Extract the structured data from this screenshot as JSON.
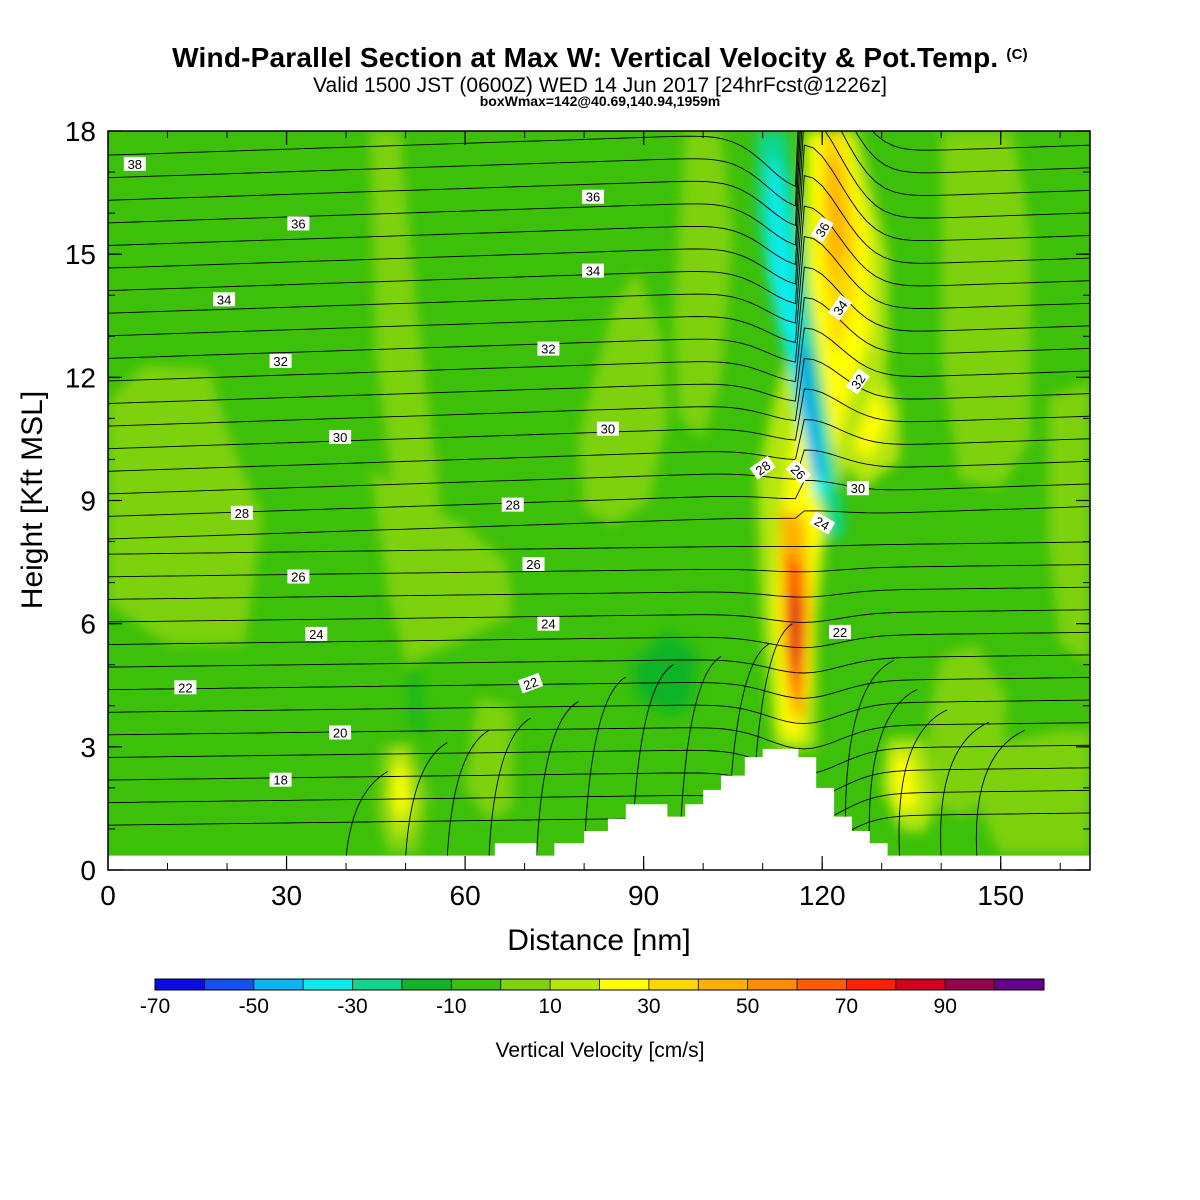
{
  "header": {
    "title": "Wind-Parallel Section at Max W: Vertical Velocity & Pot.Temp.",
    "title_mark": "(C)",
    "subtitle": "Valid 1500 JST (0600Z) WED 14 Jun 2017 [24hrFcst@1226z]",
    "info": "boxWmax=142@40.69,140.94,1959m"
  },
  "chart_data": {
    "type": "heatmap",
    "xlabel": "Distance [nm]",
    "ylabel": "Height [Kft MSL]",
    "xlim": [
      0,
      165
    ],
    "ylim": [
      0,
      18
    ],
    "x_ticks": [
      0,
      30,
      60,
      90,
      120,
      150
    ],
    "y_ticks": [
      0,
      3,
      6,
      9,
      12,
      15,
      18
    ],
    "colorbar": {
      "label": "Vertical Velocity [cm/s]",
      "tick_labels": [
        "-70",
        "-50",
        "-30",
        "-10",
        "10",
        "30",
        "50",
        "70",
        "90"
      ],
      "bins": [
        -70,
        -60,
        -50,
        -40,
        -30,
        -20,
        -10,
        0,
        10,
        20,
        30,
        40,
        50,
        60,
        70,
        80,
        90,
        100
      ],
      "colors": [
        "#0a0ae6",
        "#1450f0",
        "#0ab4f5",
        "#0aecec",
        "#10d68c",
        "#10b428",
        "#3cc00a",
        "#7ed20a",
        "#b6e60a",
        "#ffff00",
        "#ffd700",
        "#ffb000",
        "#ff8c00",
        "#ff5a00",
        "#ff2000",
        "#d2001e",
        "#96004a",
        "#64008c"
      ]
    },
    "terrain": [
      [
        0,
        0.35
      ],
      [
        65,
        0.35
      ],
      [
        65,
        0.65
      ],
      [
        72,
        0.65
      ],
      [
        72,
        0.35
      ],
      [
        75,
        0.35
      ],
      [
        75,
        0.65
      ],
      [
        80,
        0.65
      ],
      [
        80,
        0.95
      ],
      [
        84,
        0.95
      ],
      [
        84,
        1.25
      ],
      [
        87,
        1.25
      ],
      [
        87,
        1.6
      ],
      [
        94,
        1.6
      ],
      [
        94,
        1.3
      ],
      [
        97,
        1.3
      ],
      [
        97,
        1.6
      ],
      [
        100,
        1.6
      ],
      [
        100,
        1.95
      ],
      [
        103,
        1.95
      ],
      [
        103,
        2.3
      ],
      [
        107,
        2.3
      ],
      [
        107,
        2.75
      ],
      [
        110,
        2.75
      ],
      [
        110,
        2.95
      ],
      [
        116,
        2.95
      ],
      [
        116,
        2.75
      ],
      [
        119,
        2.75
      ],
      [
        119,
        2.0
      ],
      [
        122,
        2.0
      ],
      [
        122,
        1.3
      ],
      [
        125,
        1.3
      ],
      [
        125,
        0.95
      ],
      [
        128,
        0.95
      ],
      [
        128,
        0.65
      ],
      [
        131,
        0.65
      ],
      [
        131,
        0.35
      ],
      [
        165,
        0.35
      ],
      [
        165,
        0
      ],
      [
        0,
        0
      ]
    ],
    "theta_contours": {
      "unit": "none",
      "labels": [
        {
          "text": "38",
          "x": 4.5,
          "y": 17.2
        },
        {
          "text": "36",
          "x": 32,
          "y": 15.75
        },
        {
          "text": "36",
          "x": 81.5,
          "y": 16.4
        },
        {
          "text": "36",
          "x": 120,
          "y": 15.6,
          "rot": -60
        },
        {
          "text": "34",
          "x": 19.5,
          "y": 13.9
        },
        {
          "text": "34",
          "x": 81.5,
          "y": 14.6
        },
        {
          "text": "34",
          "x": 123,
          "y": 13.7,
          "rot": -55
        },
        {
          "text": "32",
          "x": 29,
          "y": 12.4
        },
        {
          "text": "32",
          "x": 74,
          "y": 12.7
        },
        {
          "text": "32",
          "x": 126,
          "y": 11.9,
          "rot": -55
        },
        {
          "text": "30",
          "x": 39,
          "y": 10.55
        },
        {
          "text": "30",
          "x": 84,
          "y": 10.75
        },
        {
          "text": "30",
          "x": 126,
          "y": 9.3
        },
        {
          "text": "28",
          "x": 22.5,
          "y": 8.7
        },
        {
          "text": "28",
          "x": 68,
          "y": 8.9
        },
        {
          "text": "28",
          "x": 110,
          "y": 9.8,
          "rot": -35
        },
        {
          "text": "26",
          "x": 32,
          "y": 7.15
        },
        {
          "text": "26",
          "x": 71.5,
          "y": 7.45
        },
        {
          "text": "26",
          "x": 116,
          "y": 9.7,
          "rot": 45
        },
        {
          "text": "24",
          "x": 35,
          "y": 5.75
        },
        {
          "text": "24",
          "x": 74,
          "y": 6.0
        },
        {
          "text": "24",
          "x": 120,
          "y": 8.45,
          "rot": 30
        },
        {
          "text": "22",
          "x": 13,
          "y": 4.45
        },
        {
          "text": "22",
          "x": 71,
          "y": 4.55,
          "rot": -20
        },
        {
          "text": "22",
          "x": 123,
          "y": 5.8
        },
        {
          "text": "20",
          "x": 39,
          "y": 3.35
        },
        {
          "text": "18",
          "x": 29,
          "y": 2.2
        }
      ]
    }
  }
}
